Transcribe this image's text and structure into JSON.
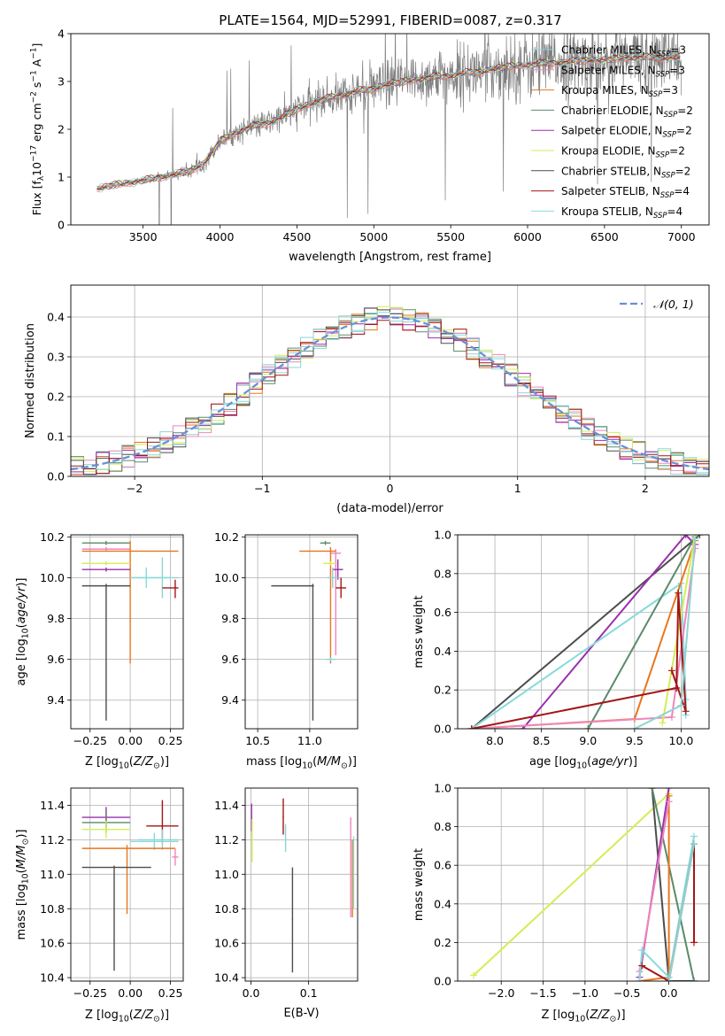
{
  "figure": {
    "title": "PLATE=1564, MJD=52991, FIBERID=0087, z=0.317"
  },
  "colors": {
    "chabrier_miles": "#8fd3d3",
    "salpeter_miles": "#ef86bb",
    "kroupa_miles": "#e8761f",
    "chabrier_elodie": "#5b8a6a",
    "salpeter_elodie": "#9b2fae",
    "kroupa_elodie": "#d4ec56",
    "chabrier_stelib": "#4d4d4d",
    "salpeter_stelib": "#a31616",
    "kroupa_stelib": "#86dada",
    "data": "#7f7f7f",
    "normal": "#6a8fd8",
    "grid": "#b0b0b0"
  },
  "chart_data": [
    {
      "id": "spectrum",
      "type": "line",
      "xlabel": "wavelength [Angstrom, rest frame]",
      "ylabel": "Flux [f_λ10^-17 erg cm^-2 s^-1 A^-1]",
      "xlim": [
        3030,
        7180
      ],
      "ylim": [
        0,
        4
      ],
      "xticks": [
        3500,
        4000,
        4500,
        5000,
        5500,
        6000,
        6500,
        7000
      ],
      "yticks": [
        0,
        1,
        2,
        3,
        4
      ],
      "grid": false,
      "legend_position": "top-right",
      "legend": [
        {
          "label": "Chabrier MILES, N_SSP=3",
          "color_key": "chabrier_miles"
        },
        {
          "label": "Salpeter MILES, N_SSP=3",
          "color_key": "salpeter_miles"
        },
        {
          "label": "Kroupa MILES, N_SSP=3",
          "color_key": "kroupa_miles"
        },
        {
          "label": "Chabrier ELODIE, N_SSP=2",
          "color_key": "chabrier_elodie"
        },
        {
          "label": "Salpeter ELODIE, N_SSP=2",
          "color_key": "salpeter_elodie"
        },
        {
          "label": "Kroupa ELODIE, N_SSP=2",
          "color_key": "kroupa_elodie"
        },
        {
          "label": "Chabrier STELIB, N_SSP=2",
          "color_key": "chabrier_stelib"
        },
        {
          "label": "Salpeter STELIB, N_SSP=4",
          "color_key": "salpeter_stelib"
        },
        {
          "label": "Kroupa STELIB, N_SSP=4",
          "color_key": "kroupa_stelib"
        }
      ],
      "continuum": {
        "x": [
          3200,
          3300,
          3400,
          3500,
          3600,
          3700,
          3800,
          3900,
          4000,
          4100,
          4200,
          4300,
          4400,
          4500,
          4600,
          4700,
          4800,
          4900,
          5000,
          5100,
          5200,
          5300,
          5400,
          5500,
          5600,
          5700,
          5800,
          5900,
          6000,
          6100,
          6200,
          6300,
          6400,
          6500,
          6600,
          6700,
          6800,
          6900,
          7000
        ],
        "y": [
          0.75,
          0.83,
          0.88,
          0.92,
          1.0,
          1.05,
          1.12,
          1.3,
          1.75,
          1.92,
          2.05,
          2.12,
          2.25,
          2.42,
          2.55,
          2.65,
          2.72,
          2.8,
          2.85,
          2.95,
          3.0,
          3.05,
          3.1,
          3.12,
          3.18,
          3.2,
          3.28,
          3.32,
          3.35,
          3.38,
          3.4,
          3.42,
          3.45,
          3.45,
          3.48,
          3.5,
          3.5,
          3.5,
          3.5
        ]
      },
      "data_series": {
        "name": "data",
        "x_range": [
          3200,
          7000
        ],
        "noise_sigma": [
          0.05,
          0.55
        ]
      }
    },
    {
      "id": "residuals",
      "type": "step",
      "xlabel": "(data-model)/error",
      "ylabel": "Normed distribution",
      "xlim": [
        -2.5,
        2.5
      ],
      "ylim": [
        0,
        0.48
      ],
      "xticks": [
        -2,
        -1,
        0,
        1,
        2
      ],
      "yticks": [
        0.0,
        0.1,
        0.2,
        0.3,
        0.4
      ],
      "grid": true,
      "legend_position": "top-right",
      "legend": [
        {
          "label": "𝒩(0, 1)",
          "color_key": "normal"
        }
      ],
      "bins": {
        "start": -2.5,
        "width": 0.1,
        "count": 50
      }
    },
    {
      "id": "age_vs_Z",
      "type": "errorbar",
      "xlabel": "Z [log10(Z/Z⊙)]",
      "ylabel": "age [log10(age/yr)]",
      "xlim": [
        -0.37,
        0.33
      ],
      "ylim": [
        9.26,
        10.21
      ],
      "xticks": [
        -0.25,
        0.0,
        0.25
      ],
      "yticks": [
        9.4,
        9.6,
        9.8,
        10.0,
        10.2
      ],
      "grid": true,
      "points": [
        {
          "color_key": "chabrier_elodie",
          "x": -0.15,
          "xerr": [
            0.15,
            0.15
          ],
          "y": 10.17,
          "yerr": [
            0.01,
            0.01
          ]
        },
        {
          "color_key": "salpeter_miles",
          "x": -0.15,
          "xerr": [
            0.15,
            0.15
          ],
          "y": 10.14,
          "yerr": [
            0.01,
            0.01
          ]
        },
        {
          "color_key": "kroupa_miles",
          "x": 0.0,
          "xerr": [
            0.3,
            0.3
          ],
          "y": 10.13,
          "yerr": [
            0.55,
            0.05
          ]
        },
        {
          "color_key": "kroupa_elodie",
          "x": -0.15,
          "xerr": [
            0.15,
            0.15
          ],
          "y": 10.07,
          "yerr": [
            0.01,
            0.01
          ]
        },
        {
          "color_key": "salpeter_elodie",
          "x": -0.15,
          "xerr": [
            0.15,
            0.15
          ],
          "y": 10.04,
          "yerr": [
            0.01,
            0.01
          ]
        },
        {
          "color_key": "chabrier_miles",
          "x": 0.2,
          "xerr": [
            0.2,
            0.1
          ],
          "y": 10.0,
          "yerr": [
            0.1,
            0.1
          ]
        },
        {
          "color_key": "chabrier_stelib",
          "x": -0.15,
          "xerr": [
            0.15,
            0.15
          ],
          "y": 9.96,
          "yerr": [
            0.66,
            0.01
          ]
        },
        {
          "color_key": "salpeter_stelib",
          "x": 0.28,
          "xerr": [
            0.08,
            0.02
          ],
          "y": 9.95,
          "yerr": [
            0.05,
            0.04
          ]
        },
        {
          "color_key": "kroupa_stelib",
          "x": 0.1,
          "xerr": [
            0.1,
            0.15
          ],
          "y": 10.0,
          "yerr": [
            0.05,
            0.05
          ]
        }
      ]
    },
    {
      "id": "age_vs_mass",
      "type": "errorbar",
      "xlabel": "mass [log10(M/M⊙)]",
      "xlim": [
        10.38,
        11.46
      ],
      "ylim": [
        9.26,
        10.21
      ],
      "xticks": [
        10.5,
        11.0
      ],
      "yticks": [
        9.4,
        9.6,
        9.8,
        10.0,
        10.2
      ],
      "grid": true,
      "points": [
        {
          "color_key": "chabrier_elodie",
          "x": 11.15,
          "xerr": [
            0.05,
            0.05
          ],
          "y": 10.17,
          "yerr": [
            0.01,
            0.01
          ]
        },
        {
          "color_key": "salpeter_miles",
          "x": 11.25,
          "xerr": [
            0.05,
            0.05
          ],
          "y": 10.12,
          "yerr": [
            0.5,
            0.02
          ]
        },
        {
          "color_key": "kroupa_miles",
          "x": 11.2,
          "xerr": [
            0.3,
            0.05
          ],
          "y": 10.13,
          "yerr": [
            0.55,
            0.02
          ]
        },
        {
          "color_key": "kroupa_elodie",
          "x": 11.2,
          "xerr": [
            0.07,
            0.07
          ],
          "y": 10.07,
          "yerr": [
            0.01,
            0.01
          ]
        },
        {
          "color_key": "salpeter_elodie",
          "x": 11.27,
          "xerr": [
            0.05,
            0.05
          ],
          "y": 10.04,
          "yerr": [
            0.05,
            0.05
          ]
        },
        {
          "color_key": "chabrier_miles",
          "x": 11.22,
          "xerr": [
            0.05,
            0.05
          ],
          "y": 10.0,
          "yerr": [
            0.05,
            0.05
          ]
        },
        {
          "color_key": "chabrier_stelib",
          "x": 11.03,
          "xerr": [
            0.4,
            0.01
          ],
          "y": 9.96,
          "yerr": [
            0.66,
            0.01
          ]
        },
        {
          "color_key": "salpeter_stelib",
          "x": 11.3,
          "xerr": [
            0.05,
            0.05
          ],
          "y": 9.95,
          "yerr": [
            0.05,
            0.05
          ]
        },
        {
          "color_key": "kroupa_stelib",
          "x": 11.2,
          "xerr": [
            0.05,
            0.05
          ],
          "y": 9.6,
          "yerr": [
            0.01,
            0.01
          ]
        }
      ]
    },
    {
      "id": "massweight_vs_age",
      "type": "line",
      "xlabel": "age [log10(age/yr)]",
      "ylabel": "mass weight",
      "xlim": [
        7.6,
        10.3
      ],
      "ylim": [
        0,
        1
      ],
      "xticks": [
        8.0,
        8.5,
        9.0,
        9.5,
        10.0
      ],
      "yticks": [
        0.0,
        0.2,
        0.4,
        0.6,
        0.8,
        1.0
      ],
      "grid": true,
      "series": [
        {
          "color_key": "chabrier_stelib",
          "x": [
            7.75,
            10.2
          ],
          "y": [
            0.0,
            1.0
          ]
        },
        {
          "color_key": "salpeter_elodie",
          "x": [
            8.3,
            10.05,
            10.15
          ],
          "y": [
            0.0,
            1.0,
            0.95
          ]
        },
        {
          "color_key": "kroupa_stelib",
          "x": [
            7.75,
            10.0,
            10.05,
            10.05
          ],
          "y": [
            0.0,
            0.75,
            0.15,
            0.07
          ]
        },
        {
          "color_key": "chabrier_elodie",
          "x": [
            9.0,
            10.15
          ],
          "y": [
            0.0,
            0.99
          ]
        },
        {
          "color_key": "kroupa_miles",
          "x": [
            7.75,
            9.5,
            10.15
          ],
          "y": [
            0.0,
            0.05,
            0.97
          ]
        },
        {
          "color_key": "salpeter_miles",
          "x": [
            7.75,
            9.9,
            10.15
          ],
          "y": [
            0.0,
            0.06,
            0.93
          ]
        },
        {
          "color_key": "kroupa_elodie",
          "x": [
            9.8,
            10.15
          ],
          "y": [
            0.03,
            1.0
          ]
        },
        {
          "color_key": "salpeter_stelib",
          "x": [
            7.75,
            9.95,
            9.97,
            10.05,
            9.9
          ],
          "y": [
            0.0,
            0.21,
            0.7,
            0.09,
            0.3
          ]
        },
        {
          "color_key": "chabrier_miles",
          "x": [
            9.5,
            10.0,
            10.15
          ],
          "y": [
            0.0,
            0.12,
            0.98
          ]
        }
      ]
    },
    {
      "id": "mass_vs_Z",
      "type": "errorbar",
      "xlabel": "Z [log10(Z/Z⊙)]",
      "ylabel": "mass [log10(M/M⊙)]",
      "xlim": [
        -0.37,
        0.33
      ],
      "ylim": [
        10.38,
        11.5
      ],
      "xticks": [
        -0.25,
        0.0,
        0.25
      ],
      "yticks": [
        10.4,
        10.6,
        10.8,
        11.0,
        11.2,
        11.4
      ],
      "grid": true,
      "points": [
        {
          "color_key": "salpeter_elodie",
          "x": -0.15,
          "xerr": [
            0.15,
            0.15
          ],
          "y": 11.33,
          "yerr": [
            0.06,
            0.06
          ]
        },
        {
          "color_key": "chabrier_elodie",
          "x": -0.15,
          "xerr": [
            0.15,
            0.15
          ],
          "y": 11.3,
          "yerr": [
            0.06,
            0.06
          ]
        },
        {
          "color_key": "salpeter_stelib",
          "x": 0.2,
          "xerr": [
            0.1,
            0.1
          ],
          "y": 11.28,
          "yerr": [
            0.1,
            0.15
          ]
        },
        {
          "color_key": "kroupa_elodie",
          "x": -0.15,
          "xerr": [
            0.15,
            0.15
          ],
          "y": 11.26,
          "yerr": [
            0.05,
            0.05
          ]
        },
        {
          "color_key": "chabrier_miles",
          "x": 0.2,
          "xerr": [
            0.15,
            0.1
          ],
          "y": 11.2,
          "yerr": [
            0.06,
            0.06
          ]
        },
        {
          "color_key": "kroupa_stelib",
          "x": 0.15,
          "xerr": [
            0.15,
            0.15
          ],
          "y": 11.19,
          "yerr": [
            0.05,
            0.05
          ]
        },
        {
          "color_key": "kroupa_miles",
          "x": -0.02,
          "xerr": [
            0.28,
            0.3
          ],
          "y": 11.15,
          "yerr": [
            0.38,
            0.02
          ]
        },
        {
          "color_key": "chabrier_stelib",
          "x": -0.1,
          "xerr": [
            0.2,
            0.23
          ],
          "y": 11.04,
          "yerr": [
            0.6,
            0.01
          ]
        },
        {
          "color_key": "salpeter_miles",
          "x": 0.28,
          "xerr": [
            0.02,
            0.02
          ],
          "y": 11.1,
          "yerr": [
            0.05,
            0.05
          ]
        }
      ]
    },
    {
      "id": "mass_vs_EBV",
      "type": "errorbar",
      "xlabel": "E(B-V)",
      "xlim": [
        -0.01,
        0.185
      ],
      "ylim": [
        10.38,
        11.5
      ],
      "xticks": [
        0.0,
        0.1
      ],
      "yticks": [
        10.4,
        10.6,
        10.8,
        11.0,
        11.2,
        11.4
      ],
      "grid": true,
      "points": [
        {
          "color_key": "salpeter_elodie",
          "x": 0.001,
          "xerr": [
            0.001,
            0.001
          ],
          "y": 11.33,
          "yerr": [
            0.08,
            0.08
          ]
        },
        {
          "color_key": "kroupa_elodie",
          "x": 0.002,
          "xerr": [
            0.001,
            0.001
          ],
          "y": 11.2,
          "yerr": [
            0.13,
            0.12
          ]
        },
        {
          "color_key": "salpeter_stelib",
          "x": 0.056,
          "xerr": [
            0.001,
            0.001
          ],
          "y": 11.33,
          "yerr": [
            0.1,
            0.11
          ]
        },
        {
          "color_key": "chabrier_miles",
          "x": 0.06,
          "xerr": [
            0.001,
            0.001
          ],
          "y": 11.21,
          "yerr": [
            0.08,
            0.08
          ]
        },
        {
          "color_key": "chabrier_stelib",
          "x": 0.072,
          "xerr": [
            0.001,
            0.001
          ],
          "y": 10.74,
          "yerr": [
            0.31,
            0.3
          ]
        },
        {
          "color_key": "salpeter_miles",
          "x": 0.173,
          "xerr": [
            0.001,
            0.001
          ],
          "y": 11.05,
          "yerr": [
            0.3,
            0.28
          ]
        },
        {
          "color_key": "kroupa_miles",
          "x": 0.176,
          "xerr": [
            0.001,
            0.001
          ],
          "y": 10.95,
          "yerr": [
            0.2,
            0.25
          ]
        },
        {
          "color_key": "kroupa_stelib",
          "x": 0.178,
          "xerr": [
            0.001,
            0.001
          ],
          "y": 11.1,
          "yerr": [
            0.3,
            0.12
          ]
        }
      ]
    },
    {
      "id": "massweight_vs_Z",
      "type": "line",
      "xlabel": "Z [log10(Z/Z⊙)]",
      "ylabel": "mass weight",
      "xlim": [
        -2.52,
        0.48
      ],
      "ylim": [
        0,
        1
      ],
      "xticks": [
        -2.0,
        -1.5,
        -1.0,
        -0.5,
        0.0
      ],
      "yticks": [
        0.0,
        0.2,
        0.4,
        0.6,
        0.8,
        1.0
      ],
      "grid": true,
      "series": [
        {
          "color_key": "kroupa_elodie",
          "x": [
            -2.33,
            0.0
          ],
          "y": [
            0.03,
            0.97
          ]
        },
        {
          "color_key": "chabrier_stelib",
          "x": [
            -0.2,
            0.0,
            0.3
          ],
          "y": [
            1.0,
            0.0,
            0.0
          ]
        },
        {
          "color_key": "chabrier_elodie",
          "x": [
            -0.2,
            0.3
          ],
          "y": [
            1.0,
            0.0
          ]
        },
        {
          "color_key": "salpeter_elodie",
          "x": [
            -0.35,
            0.0
          ],
          "y": [
            0.02,
            1.0
          ]
        },
        {
          "color_key": "kroupa_miles",
          "x": [
            -0.35,
            0.0,
            0.0
          ],
          "y": [
            0.0,
            0.02,
            0.96
          ]
        },
        {
          "color_key": "salpeter_miles",
          "x": [
            -0.35,
            0.0
          ],
          "y": [
            0.05,
            0.93
          ]
        },
        {
          "color_key": "kroupa_stelib",
          "x": [
            -0.35,
            -0.32,
            0.0,
            0.3
          ],
          "y": [
            0.0,
            0.16,
            0.02,
            0.75
          ]
        },
        {
          "color_key": "salpeter_stelib",
          "x": [
            -0.32,
            0.0,
            0.3,
            0.3
          ],
          "y": [
            0.08,
            0.0,
            0.71,
            0.2
          ]
        },
        {
          "color_key": "chabrier_miles",
          "x": [
            0.0,
            0.3
          ],
          "y": [
            0.0,
            0.71
          ]
        }
      ]
    }
  ]
}
